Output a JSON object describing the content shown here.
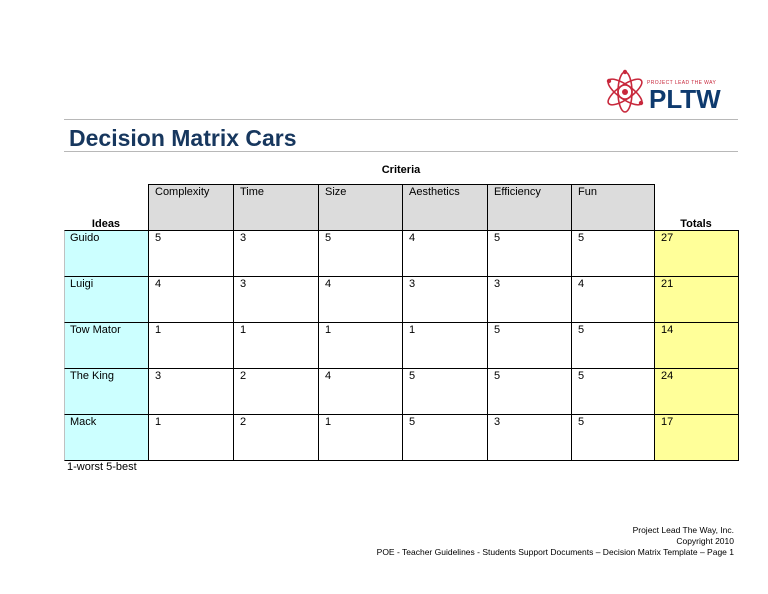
{
  "logo": {
    "tagline": "PROJECT LEAD THE WAY",
    "wordmark": "PLTW",
    "icon": "atom-gear-icon",
    "colors": {
      "red": "#c8283c",
      "navy": "#0e3a6e"
    }
  },
  "document": {
    "title": "Decision Matrix Cars",
    "criteria_label": "Criteria",
    "ideas_label": "Ideas",
    "totals_label": "Totals",
    "note": "1-worst 5-best"
  },
  "matrix": {
    "criteria": [
      "Complexity",
      "Time",
      "Size",
      "Aesthetics",
      "Efficiency",
      "Fun"
    ],
    "rows": [
      {
        "idea": "Guido",
        "scores": [
          "5",
          "3",
          "5",
          "4",
          "5",
          "5"
        ],
        "total": "27"
      },
      {
        "idea": "Luigi",
        "scores": [
          "4",
          "3",
          "4",
          "3",
          "3",
          "4"
        ],
        "total": "21"
      },
      {
        "idea": "Tow Mator",
        "scores": [
          "1",
          "1",
          "1",
          "1",
          "5",
          "5"
        ],
        "total": "14"
      },
      {
        "idea": "The King",
        "scores": [
          "3",
          "2",
          "4",
          "5",
          "5",
          "5"
        ],
        "total": "24"
      },
      {
        "idea": "Mack",
        "scores": [
          "1",
          "2",
          "1",
          "5",
          "3",
          "5"
        ],
        "total": "17"
      }
    ],
    "colors": {
      "idea_fill": "#ccffff",
      "total_fill": "#ffff99",
      "header_fill": "#dcdcdc",
      "title": "#17375e"
    }
  },
  "footer": {
    "line1": "Project Lead The Way, Inc.",
    "line2": "Copyright 2010",
    "line3": "POE - Teacher Guidelines - Students Support Documents – Decision Matrix Template – Page 1"
  }
}
